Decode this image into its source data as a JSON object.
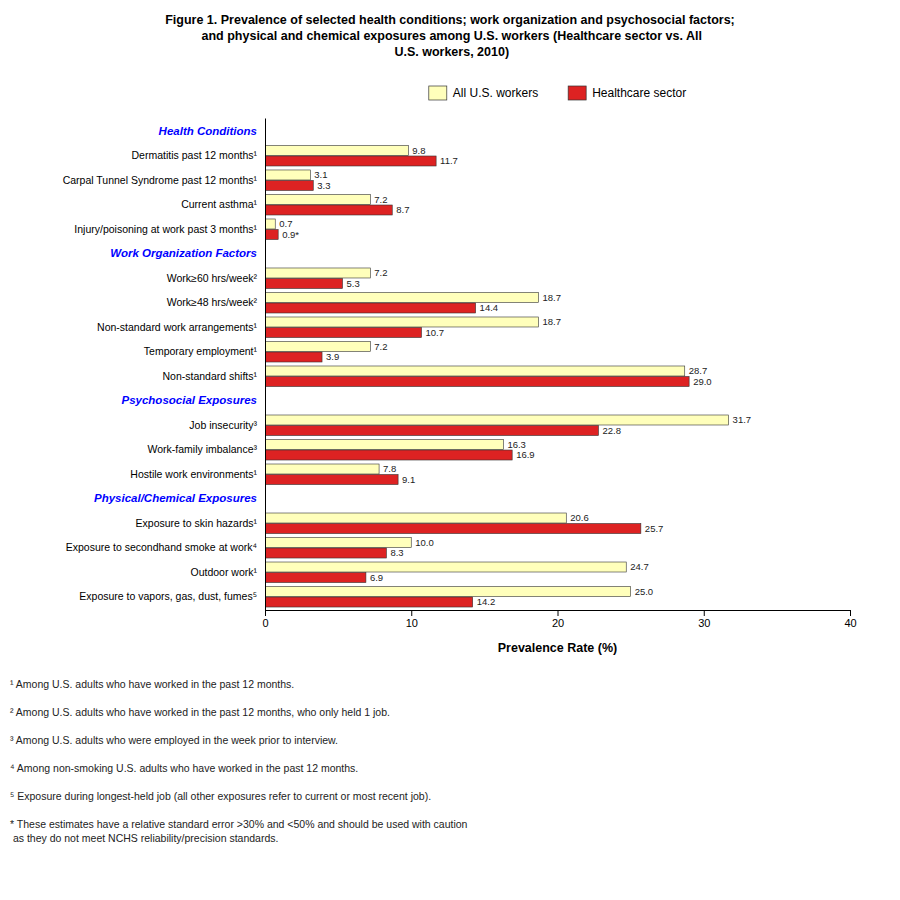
{
  "chart_data": {
    "type": "bar",
    "orientation": "horizontal",
    "title": "Figure 1. Prevalence of selected health conditions; work organization and psychosocial factors;\n  and physical and chemical exposures among U.S. workers (Healthcare sector vs. All\n  U.S. workers, 2010)",
    "xlabel": "Prevalence Rate (%)",
    "xlim": [
      0,
      40
    ],
    "xticks": [
      0,
      10,
      20,
      30,
      40
    ],
    "grid": false,
    "legend": "top",
    "data_labels": true,
    "categories": [
      "Health Conditions",
      "Dermatitis past 12 months¹",
      "Carpal Tunnel Syndrome past 12 months¹",
      "Current asthma¹",
      "Injury/poisoning at work past 3 months¹",
      "Work Organization Factors",
      "Work≥60 hrs/week²",
      "Work≥48 hrs/week²",
      "Non-standard work arrangements¹",
      "Temporary employment¹",
      "Non-standard shifts¹",
      "Psychosocial Exposures",
      "Job insecurity³",
      "Work-family imbalance³",
      "Hostile work environments¹",
      "Physical/Chemical Exposures",
      "Exposure to skin hazards¹",
      "Exposure to secondhand smoke at work⁴",
      "Outdoor work¹",
      "Exposure to vapors, gas, dust, fumes⁵"
    ],
    "series": [
      {
        "name": "All U.S. workers",
        "color": "#FFFFBB",
        "values": [
          null,
          9.8,
          3.1,
          7.2,
          0.7,
          null,
          7.2,
          18.7,
          18.7,
          7.2,
          28.7,
          null,
          31.7,
          16.3,
          7.8,
          null,
          20.6,
          10.0,
          24.7,
          25.0
        ],
        "value_labels": [
          null,
          "9.8",
          "3.1",
          "7.2",
          "0.7",
          null,
          "7.2",
          "18.7",
          "18.7",
          "7.2",
          "28.7",
          null,
          "31.7",
          "16.3",
          "7.8",
          null,
          "20.6",
          "10.0",
          "24.7",
          "25.0"
        ]
      },
      {
        "name": "Healthcare sector",
        "color": "#DD2222",
        "values": [
          null,
          11.7,
          3.3,
          8.7,
          0.9,
          null,
          5.3,
          14.4,
          10.7,
          3.9,
          29.0,
          null,
          22.8,
          16.9,
          9.1,
          null,
          25.7,
          8.3,
          6.9,
          14.2
        ],
        "value_labels": [
          null,
          "11.7",
          "3.3",
          "8.7",
          "0.9*",
          null,
          "5.3",
          "14.4",
          "10.7",
          "3.9",
          "29.0",
          null,
          "22.8",
          "16.9",
          "9.1",
          null,
          "25.7",
          "8.3",
          "6.9",
          "14.2"
        ]
      }
    ],
    "annotations": [
      "¹ Among U.S. adults who have worked in the past 12 months.",
      "² Among U.S. adults who have worked in the past 12 months, who only held 1 job.",
      "³ Among U.S. adults who were employed in the week prior to interview.",
      "⁴ Among non-smoking U.S. adults who have worked in the past 12 months.",
      "⁵ Exposure during longest-held job (all other exposures refer to current or most recent job).",
      "* These estimates have a relative standard error >30% and <50% and should be used with caution\n  as they do not meet NCHS reliability/precision standards."
    ]
  }
}
